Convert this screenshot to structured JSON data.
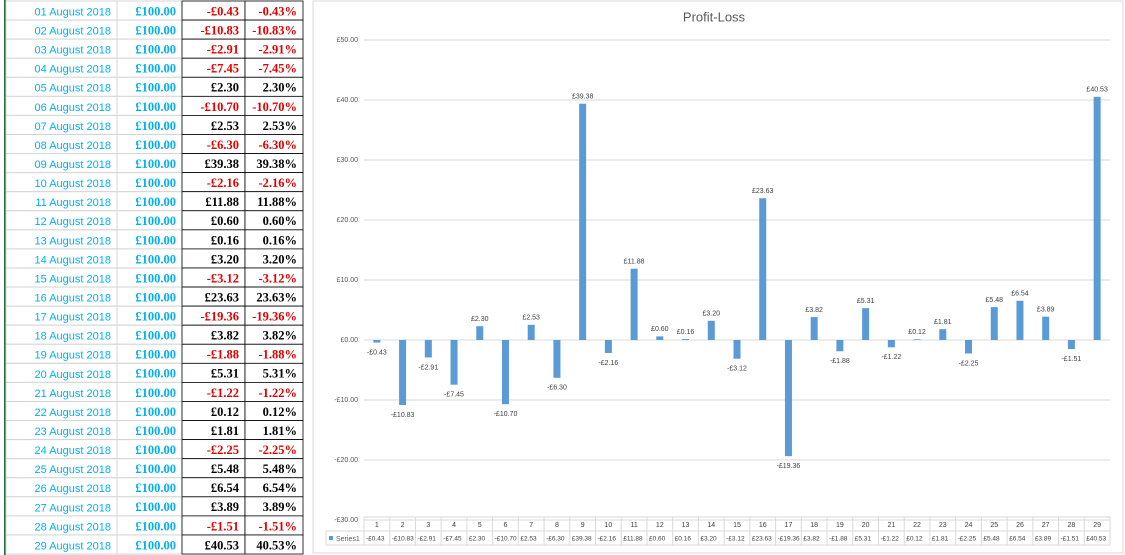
{
  "table": {
    "rows": [
      [
        "01 August 2018",
        "£100.00",
        "-£0.43",
        "-0.43%"
      ],
      [
        "02 August 2018",
        "£100.00",
        "-£10.83",
        "-10.83%"
      ],
      [
        "03 August 2018",
        "£100.00",
        "-£2.91",
        "-2.91%"
      ],
      [
        "04 August 2018",
        "£100.00",
        "-£7.45",
        "-7.45%"
      ],
      [
        "05 August 2018",
        "£100.00",
        "£2.30",
        "2.30%"
      ],
      [
        "06 August 2018",
        "£100.00",
        "-£10.70",
        "-10.70%"
      ],
      [
        "07 August 2018",
        "£100.00",
        "£2.53",
        "2.53%"
      ],
      [
        "08 August 2018",
        "£100.00",
        "-£6.30",
        "-6.30%"
      ],
      [
        "09 August 2018",
        "£100.00",
        "£39.38",
        "39.38%"
      ],
      [
        "10 August 2018",
        "£100.00",
        "-£2.16",
        "-2.16%"
      ],
      [
        "11 August 2018",
        "£100.00",
        "£11.88",
        "11.88%"
      ],
      [
        "12 August 2018",
        "£100.00",
        "£0.60",
        "0.60%"
      ],
      [
        "13 August 2018",
        "£100.00",
        "£0.16",
        "0.16%"
      ],
      [
        "14 August 2018",
        "£100.00",
        "£3.20",
        "3.20%"
      ],
      [
        "15 August 2018",
        "£100.00",
        "-£3.12",
        "-3.12%"
      ],
      [
        "16 August 2018",
        "£100.00",
        "£23.63",
        "23.63%"
      ],
      [
        "17 August 2018",
        "£100.00",
        "-£19.36",
        "-19.36%"
      ],
      [
        "18 August 2018",
        "£100.00",
        "£3.82",
        "3.82%"
      ],
      [
        "19 August 2018",
        "£100.00",
        "-£1.88",
        "-1.88%"
      ],
      [
        "20 August 2018",
        "£100.00",
        "£5.31",
        "5.31%"
      ],
      [
        "21 August 2018",
        "£100.00",
        "-£1.22",
        "-1.22%"
      ],
      [
        "22 August 2018",
        "£100.00",
        "£0.12",
        "0.12%"
      ],
      [
        "23 August 2018",
        "£100.00",
        "£1.81",
        "1.81%"
      ],
      [
        "24 August 2018",
        "£100.00",
        "-£2.25",
        "-2.25%"
      ],
      [
        "25 August 2018",
        "£100.00",
        "£5.48",
        "5.48%"
      ],
      [
        "26 August 2018",
        "£100.00",
        "£6.54",
        "6.54%"
      ],
      [
        "27 August 2018",
        "£100.00",
        "£3.89",
        "3.89%"
      ],
      [
        "28 August 2018",
        "£100.00",
        "-£1.51",
        "-1.51%"
      ],
      [
        "29 August 2018",
        "£100.00",
        "£40.53",
        "40.53%"
      ]
    ]
  },
  "chart_data": {
    "type": "bar",
    "title": "Profit-Loss",
    "categories": [
      "1",
      "2",
      "3",
      "4",
      "5",
      "6",
      "7",
      "8",
      "9",
      "10",
      "11",
      "12",
      "13",
      "14",
      "15",
      "16",
      "17",
      "18",
      "19",
      "20",
      "21",
      "22",
      "23",
      "24",
      "25",
      "26",
      "27",
      "28",
      "29"
    ],
    "series": [
      {
        "name": "Series1",
        "color": "#5b9bd5",
        "values": [
          -0.43,
          -10.83,
          -2.91,
          -7.45,
          2.3,
          -10.7,
          2.53,
          -6.3,
          39.38,
          -2.16,
          11.88,
          0.6,
          0.16,
          3.2,
          -3.12,
          23.63,
          -19.36,
          3.82,
          -1.88,
          5.31,
          -1.22,
          0.12,
          1.81,
          -2.25,
          5.48,
          6.54,
          3.89,
          -1.51,
          40.53
        ],
        "value_labels": [
          "-£0.43",
          "-£10.83",
          "-£2.91",
          "-£7.45",
          "£2.30",
          "-£10.70",
          "£2.53",
          "-£6.30",
          "£39.38",
          "-£2.16",
          "£11.88",
          "£0.60",
          "£0.16",
          "£3.20",
          "-£3.12",
          "£23.63",
          "-£19.36",
          "£3.82",
          "-£1.88",
          "£5.31",
          "-£1.22",
          "£0.12",
          "£1.81",
          "-£2.25",
          "£5.48",
          "£6.54",
          "£3.89",
          "-£1.51",
          "£40.53"
        ]
      }
    ],
    "ylim": [
      -30,
      50
    ],
    "yticks": [
      {
        "value": -30,
        "label": "-£30.00"
      },
      {
        "value": -20,
        "label": "-£20.00"
      },
      {
        "value": -10,
        "label": "-£10.00"
      },
      {
        "value": 0,
        "label": "£0.00"
      },
      {
        "value": 10,
        "label": "£10.00"
      },
      {
        "value": 20,
        "label": "£20.00"
      },
      {
        "value": 30,
        "label": "£30.00"
      },
      {
        "value": 40,
        "label": "£40.00"
      },
      {
        "value": 50,
        "label": "£50.00"
      }
    ],
    "grid": true
  }
}
